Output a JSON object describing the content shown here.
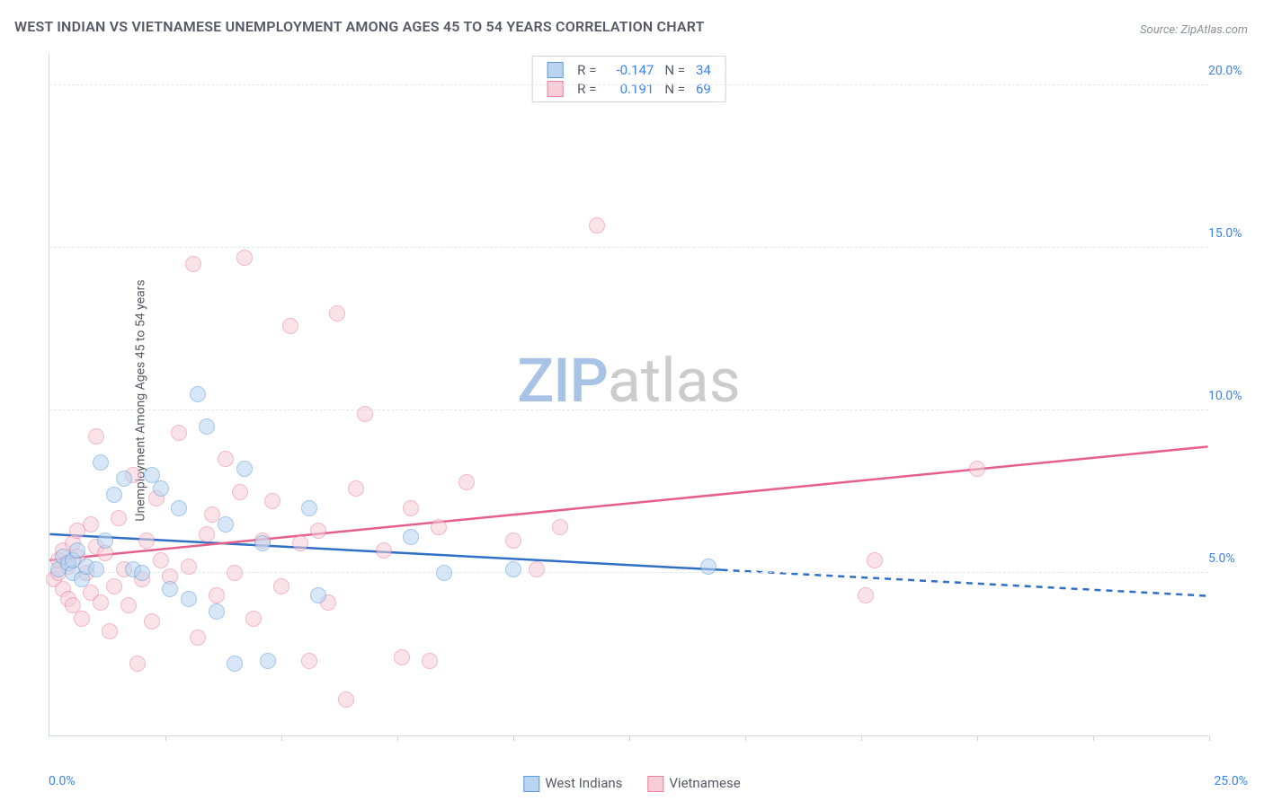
{
  "chart": {
    "type": "scatter",
    "title": "WEST INDIAN VS VIETNAMESE UNEMPLOYMENT AMONG AGES 45 TO 54 YEARS CORRELATION CHART",
    "source_label": "Source: ZipAtlas.com",
    "y_axis_label": "Unemployment Among Ages 45 to 54 years",
    "xlim": [
      0,
      25
    ],
    "ylim": [
      0,
      21
    ],
    "x_origin_label": "0.0%",
    "x_max_label": "25.0%",
    "y_ticks": [
      5,
      10,
      15,
      20
    ],
    "y_tick_labels": [
      "5.0%",
      "10.0%",
      "15.0%",
      "20.0%"
    ],
    "x_ticks": [
      2.5,
      5,
      7.5,
      10,
      12.5,
      15,
      17.5,
      20,
      22.5,
      25
    ],
    "background_color": "#ffffff",
    "grid_color": "#e4e6ea",
    "axis_color": "#cfd3da",
    "tick_label_color": "#3b82f6",
    "label_fontsize": 14,
    "title_fontsize": 16,
    "marker_radius": 9,
    "marker_opacity": 0.55,
    "watermark": {
      "zip": "ZIP",
      "atlas": "atlas",
      "zip_color": "#a9c3e6",
      "atlas_color": "#cccccc"
    },
    "series": [
      {
        "name": "West Indians",
        "fill_color": "#b9d4f1",
        "stroke_color": "#5a9bd8",
        "line_color": "#2f6fc6",
        "R": "-0.147",
        "N": "34",
        "trend_solid": {
          "x1": 0,
          "y1": 6.2,
          "x2": 14.5,
          "y2": 5.1
        },
        "trend_dashed": {
          "x1": 14.5,
          "y1": 5.1,
          "x2": 25,
          "y2": 4.3
        },
        "points": [
          [
            0.2,
            5.1
          ],
          [
            0.3,
            5.5
          ],
          [
            0.4,
            5.3
          ],
          [
            0.5,
            5.0
          ],
          [
            0.5,
            5.4
          ],
          [
            0.6,
            5.7
          ],
          [
            0.7,
            4.8
          ],
          [
            0.8,
            5.2
          ],
          [
            1.0,
            5.1
          ],
          [
            1.1,
            8.4
          ],
          [
            1.2,
            6.0
          ],
          [
            1.4,
            7.4
          ],
          [
            1.6,
            7.9
          ],
          [
            1.8,
            5.1
          ],
          [
            2.0,
            5.0
          ],
          [
            2.2,
            8.0
          ],
          [
            2.4,
            7.6
          ],
          [
            2.6,
            4.5
          ],
          [
            2.8,
            7.0
          ],
          [
            3.0,
            4.2
          ],
          [
            3.2,
            10.5
          ],
          [
            3.4,
            9.5
          ],
          [
            3.6,
            3.8
          ],
          [
            3.8,
            6.5
          ],
          [
            4.0,
            2.2
          ],
          [
            4.2,
            8.2
          ],
          [
            4.6,
            5.9
          ],
          [
            4.7,
            2.3
          ],
          [
            5.6,
            7.0
          ],
          [
            5.8,
            4.3
          ],
          [
            7.8,
            6.1
          ],
          [
            8.5,
            5.0
          ],
          [
            10.0,
            5.1
          ],
          [
            14.2,
            5.2
          ]
        ]
      },
      {
        "name": "Vietnamese",
        "fill_color": "#f6cdd7",
        "stroke_color": "#ea7da0",
        "line_color": "#e65f8b",
        "R": "0.191",
        "N": "69",
        "trend_solid": {
          "x1": 0,
          "y1": 5.4,
          "x2": 25,
          "y2": 8.9
        },
        "trend_dashed": null,
        "points": [
          [
            0.1,
            4.8
          ],
          [
            0.2,
            5.0
          ],
          [
            0.2,
            5.4
          ],
          [
            0.3,
            4.5
          ],
          [
            0.3,
            5.7
          ],
          [
            0.4,
            5.2
          ],
          [
            0.4,
            4.2
          ],
          [
            0.5,
            5.9
          ],
          [
            0.5,
            4.0
          ],
          [
            0.6,
            5.5
          ],
          [
            0.6,
            6.3
          ],
          [
            0.7,
            3.6
          ],
          [
            0.8,
            5.0
          ],
          [
            0.9,
            4.4
          ],
          [
            1.0,
            5.8
          ],
          [
            1.0,
            9.2
          ],
          [
            1.1,
            4.1
          ],
          [
            1.2,
            5.6
          ],
          [
            1.3,
            3.2
          ],
          [
            1.4,
            4.6
          ],
          [
            1.5,
            6.7
          ],
          [
            1.6,
            5.1
          ],
          [
            1.8,
            8.0
          ],
          [
            1.9,
            2.2
          ],
          [
            2.0,
            4.8
          ],
          [
            2.1,
            6.0
          ],
          [
            2.2,
            3.5
          ],
          [
            2.4,
            5.4
          ],
          [
            2.6,
            4.9
          ],
          [
            2.8,
            9.3
          ],
          [
            3.0,
            5.2
          ],
          [
            3.1,
            14.5
          ],
          [
            3.2,
            3.0
          ],
          [
            3.4,
            6.2
          ],
          [
            3.6,
            4.3
          ],
          [
            3.8,
            8.5
          ],
          [
            4.0,
            5.0
          ],
          [
            4.2,
            14.7
          ],
          [
            4.4,
            3.6
          ],
          [
            4.6,
            6.0
          ],
          [
            4.8,
            7.2
          ],
          [
            5.0,
            4.6
          ],
          [
            5.2,
            12.6
          ],
          [
            5.4,
            5.9
          ],
          [
            5.6,
            2.3
          ],
          [
            5.8,
            6.3
          ],
          [
            6.0,
            4.1
          ],
          [
            6.2,
            13.0
          ],
          [
            6.4,
            1.1
          ],
          [
            6.6,
            7.6
          ],
          [
            6.8,
            9.9
          ],
          [
            7.2,
            5.7
          ],
          [
            7.6,
            2.4
          ],
          [
            7.8,
            7.0
          ],
          [
            8.2,
            2.3
          ],
          [
            8.4,
            6.4
          ],
          [
            9.0,
            7.8
          ],
          [
            10.0,
            6.0
          ],
          [
            10.5,
            5.1
          ],
          [
            11.0,
            6.4
          ],
          [
            11.8,
            15.7
          ],
          [
            17.6,
            4.3
          ],
          [
            17.8,
            5.4
          ],
          [
            20.0,
            8.2
          ],
          [
            3.5,
            6.8
          ],
          [
            4.1,
            7.5
          ],
          [
            1.7,
            4.0
          ],
          [
            2.3,
            7.3
          ],
          [
            0.9,
            6.5
          ]
        ]
      }
    ],
    "bottom_legend": {
      "items": [
        {
          "label": "West Indians",
          "fill": "#b9d4f1",
          "stroke": "#5a9bd8"
        },
        {
          "label": "Vietnamese",
          "fill": "#f6cdd7",
          "stroke": "#ea7da0"
        }
      ]
    }
  }
}
